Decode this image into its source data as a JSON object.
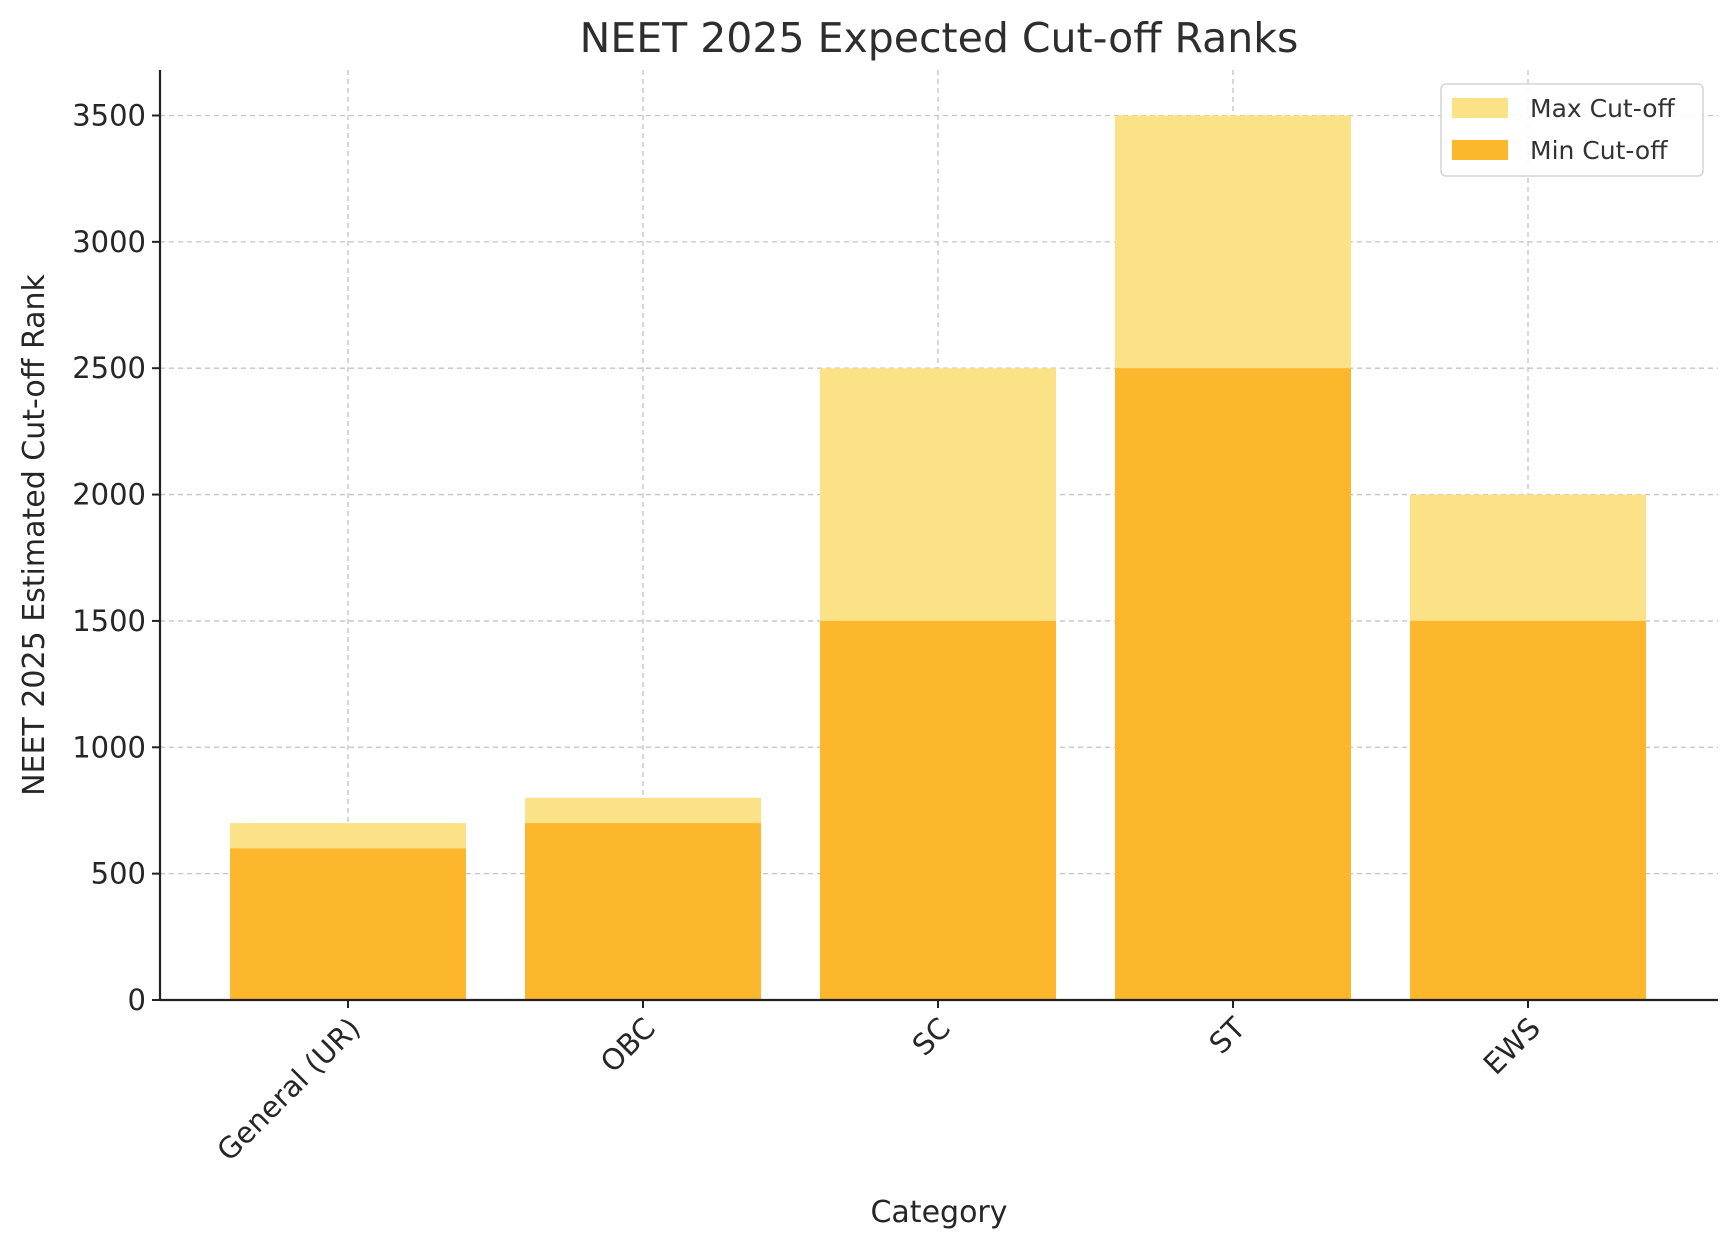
{
  "chart_data": {
    "type": "bar",
    "title": "NEET 2025 Expected Cut-off Ranks",
    "xlabel": "Category",
    "ylabel": "NEET 2025 Estimated Cut-off Rank",
    "categories": [
      "General (UR)",
      "OBC",
      "SC",
      "ST",
      "EWS"
    ],
    "series": [
      {
        "name": "Max Cut-off",
        "values": [
          700,
          800,
          2500,
          3500,
          2000
        ],
        "color": "#fce287"
      },
      {
        "name": "Min Cut-off",
        "values": [
          600,
          700,
          1500,
          2500,
          1500
        ],
        "color": "#fdb72d"
      }
    ],
    "ylim": [
      0,
      3680
    ],
    "yticks": [
      0,
      500,
      1000,
      1500,
      2000,
      2500,
      3000,
      3500
    ],
    "grid": true,
    "legend_position": "top-right",
    "overlapping": true
  }
}
